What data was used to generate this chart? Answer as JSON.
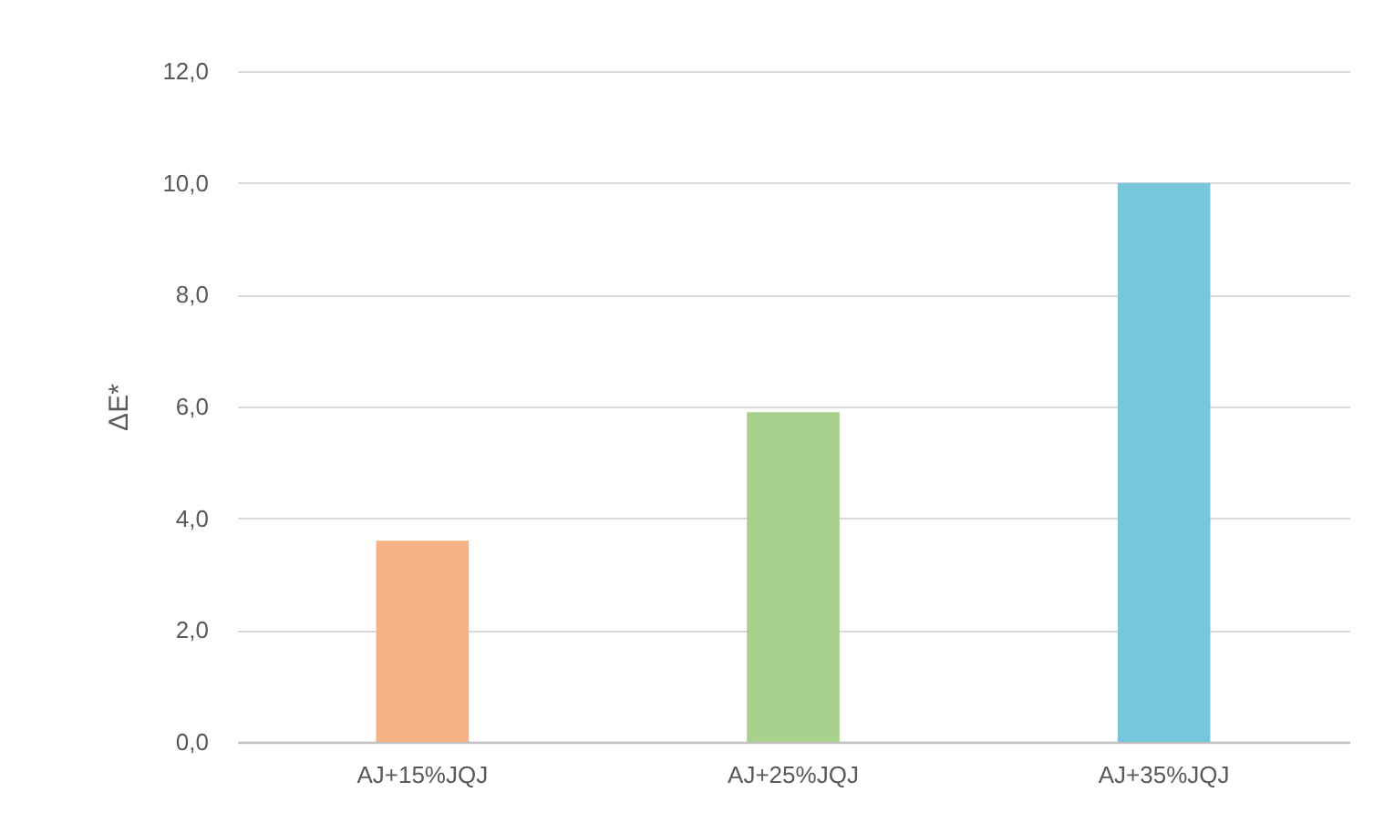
{
  "chart_data": {
    "type": "bar",
    "ylabel": "ΔE*",
    "categories": [
      "AJ+15%JQJ",
      "AJ+25%JQJ",
      "AJ+35%JQJ"
    ],
    "values": [
      3.6,
      5.9,
      10.0
    ],
    "colors": [
      "#f4b183",
      "#a9d18e",
      "#78c6dc"
    ],
    "ylim": [
      0,
      12
    ],
    "yticks": [
      {
        "value": 0,
        "label": "0,0"
      },
      {
        "value": 2,
        "label": "2,0"
      },
      {
        "value": 4,
        "label": "4,0"
      },
      {
        "value": 6,
        "label": "6,0"
      },
      {
        "value": 8,
        "label": "8,0"
      },
      {
        "value": 10,
        "label": "10,0"
      },
      {
        "value": 12,
        "label": "12,0"
      }
    ],
    "grid": "y"
  }
}
